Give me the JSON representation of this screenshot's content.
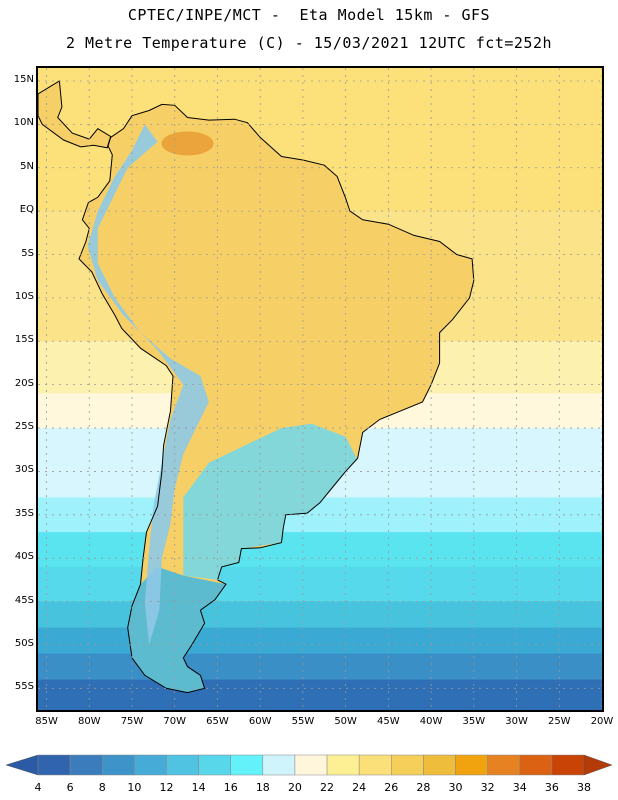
{
  "header": {
    "line1": "CPTEC/INPE/MCT -  Eta Model 15km - GFS",
    "line2": "2 Metre Temperature (C) - 15/03/2021 12UTC fct=252h"
  },
  "map": {
    "lat_labels": [
      "15N",
      "10N",
      "5N",
      "EQ",
      "5S",
      "10S",
      "15S",
      "20S",
      "25S",
      "30S",
      "35S",
      "40S",
      "45S",
      "50S",
      "55S"
    ],
    "lat_values": [
      15,
      10,
      5,
      0,
      -5,
      -10,
      -15,
      -20,
      -25,
      -30,
      -35,
      -40,
      -45,
      -50,
      -55
    ],
    "lon_labels": [
      "85W",
      "80W",
      "75W",
      "70W",
      "65W",
      "60W",
      "55W",
      "50W",
      "45W",
      "40W",
      "35W",
      "30W",
      "25W",
      "20W"
    ],
    "lon_values": [
      -85,
      -80,
      -75,
      -70,
      -65,
      -60,
      -55,
      -50,
      -45,
      -40,
      -35,
      -30,
      -25,
      -20
    ],
    "extent": {
      "lon_min": -86,
      "lon_max": -20,
      "lat_min": -57.5,
      "lat_max": 16.5
    },
    "ocean_bands": [
      {
        "lat_top": 16.5,
        "lat_bottom": 0,
        "color": "#fce07a",
        "temp": 26
      },
      {
        "lat_top": 0,
        "lat_bottom": -15,
        "color": "#fbe38a",
        "temp": 26
      },
      {
        "lat_top": -15,
        "lat_bottom": -21,
        "color": "#fdf1b0",
        "temp": 24
      },
      {
        "lat_top": -21,
        "lat_bottom": -25,
        "color": "#fff8dc",
        "temp": 22
      },
      {
        "lat_top": -25,
        "lat_bottom": -33,
        "color": "#d8f6fd",
        "temp": 20
      },
      {
        "lat_top": -33,
        "lat_bottom": -37,
        "color": "#9ff2fb",
        "temp": 18
      },
      {
        "lat_top": -37,
        "lat_bottom": -41,
        "color": "#59e4f0",
        "temp": 16
      },
      {
        "lat_top": -41,
        "lat_bottom": -45,
        "color": "#56d9ea",
        "temp": 14
      },
      {
        "lat_top": -45,
        "lat_bottom": -48,
        "color": "#47c3de",
        "temp": 12
      },
      {
        "lat_top": -48,
        "lat_bottom": -51,
        "color": "#3aa9d3",
        "temp": 10
      },
      {
        "lat_top": -51,
        "lat_bottom": -54,
        "color": "#3a8fc7",
        "temp": 8
      },
      {
        "lat_top": -54,
        "lat_bottom": -57.5,
        "color": "#2f6fb5",
        "temp": 6
      }
    ],
    "continent_color": "#f6d067",
    "hotspot_color": "#e99e36",
    "andes_color": "#8ec9e6",
    "southern_cone_color": "#6fd8ec",
    "patagonia_color": "#4bb8da"
  },
  "colorbar": {
    "labels": [
      "4",
      "6",
      "8",
      "10",
      "12",
      "14",
      "16",
      "18",
      "20",
      "22",
      "24",
      "26",
      "28",
      "30",
      "32",
      "34",
      "36",
      "38"
    ],
    "low_end_color": "#2b5aa6",
    "high_end_color": "#b43a08",
    "colors": [
      "#3164ae",
      "#3a7cbc",
      "#3e94c8",
      "#46abd6",
      "#50c2e2",
      "#58d7ea",
      "#63f2f9",
      "#cff4fb",
      "#fff6dc",
      "#fdef94",
      "#fbe07a",
      "#f4cf59",
      "#efbd3c",
      "#f0a20f",
      "#e78222",
      "#db6212",
      "#c84305"
    ]
  }
}
